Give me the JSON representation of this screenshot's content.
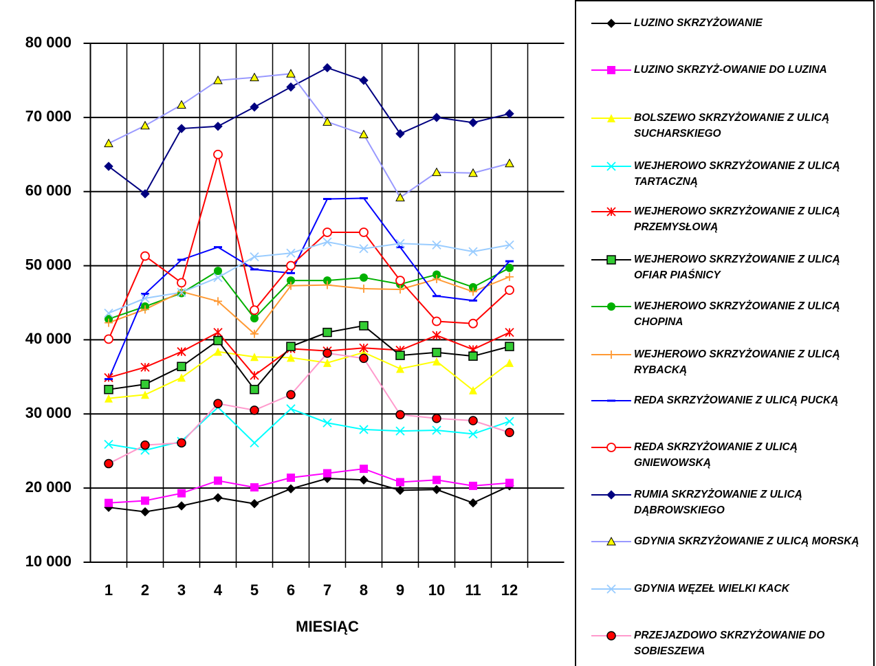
{
  "chart_data": {
    "type": "line",
    "x_label": "MIESIĄC",
    "x": [
      1,
      2,
      3,
      4,
      5,
      6,
      7,
      8,
      9,
      10,
      11,
      12
    ],
    "xlim": [
      0.5,
      13.5
    ],
    "xticks": [
      1,
      2,
      3,
      4,
      5,
      6,
      7,
      8,
      9,
      10,
      11,
      12
    ],
    "ylim": [
      10000,
      80000
    ],
    "yticks": [
      {
        "value": 10000,
        "label": "10 000"
      },
      {
        "value": 20000,
        "label": "20 000"
      },
      {
        "value": 30000,
        "label": "30 000"
      },
      {
        "value": 40000,
        "label": "40 000"
      },
      {
        "value": 50000,
        "label": "50 000"
      },
      {
        "value": 60000,
        "label": "60 000"
      },
      {
        "value": 70000,
        "label": "70 000"
      },
      {
        "value": 80000,
        "label": "80 000"
      }
    ],
    "grid": true,
    "legend": "right",
    "series": [
      {
        "name": "LUZINO SKRZYŻOWANIE",
        "color": "#000000",
        "marker": "diamond",
        "marker_color": "#000000",
        "values": [
          17400,
          16800,
          17600,
          18700,
          17900,
          19900,
          21300,
          21100,
          19700,
          19800,
          18000,
          20300
        ]
      },
      {
        "name": "LUZINO SKRZYŻ-OWANIE DO LUZINA",
        "color": "#ff00ff",
        "marker": "square",
        "marker_color": "#ff00ff",
        "values": [
          18000,
          18300,
          19300,
          21000,
          20100,
          21400,
          22000,
          22600,
          20800,
          21100,
          20300,
          20700
        ]
      },
      {
        "name": "BOLSZEWO SKRZYŻOWANIE Z ULICĄ SUCHARSKIEGO",
        "color": "#ffff00",
        "marker": "triangle",
        "marker_color": "#ffff00",
        "values": [
          32100,
          32600,
          34900,
          38400,
          37700,
          37600,
          36900,
          38300,
          36100,
          37100,
          33200,
          36900
        ]
      },
      {
        "name": "WEJHEROWO SKRZYŻOWANIE Z ULICĄ TARTACZNĄ",
        "color": "#00ffff",
        "marker": "x",
        "marker_color": "#00ffff",
        "values": [
          25900,
          25100,
          26300,
          30900,
          26100,
          30700,
          28800,
          27900,
          27700,
          27800,
          27300,
          29000
        ]
      },
      {
        "name": "WEJHEROWO SKRZYŻOWANIE Z ULICĄ PRZEMYSŁOWĄ",
        "color": "#ff0000",
        "marker": "star",
        "marker_color": "#ff0000",
        "values": [
          34900,
          36300,
          38400,
          41000,
          35200,
          38800,
          38500,
          38900,
          38600,
          40600,
          38700,
          41000
        ]
      },
      {
        "name": "WEJHEROWO SKRZYŻOWANIE Z ULICĄ OFIAR PIAŚNICY",
        "color": "#000000",
        "marker": "square-edged",
        "marker_color": "#33cc33",
        "values": [
          33300,
          34000,
          36400,
          39900,
          33300,
          39100,
          41000,
          41900,
          37900,
          38300,
          37800,
          39100
        ]
      },
      {
        "name": "WEJHEROWO SKRZYŻOWANIE Z ULICĄ CHOPINA",
        "color": "#00b000",
        "marker": "circle",
        "marker_color": "#00b000",
        "values": [
          42800,
          44500,
          46300,
          49300,
          42900,
          48000,
          48000,
          48400,
          47500,
          48800,
          47100,
          49700
        ]
      },
      {
        "name": "WEJHEROWO SKRZYŻOWANIE Z ULICĄ RYBACKĄ",
        "color": "#ff9933",
        "marker": "plus",
        "marker_color": "#ff9933",
        "values": [
          42300,
          44100,
          46500,
          45200,
          40800,
          47300,
          47400,
          46900,
          46800,
          48200,
          46500,
          48500
        ]
      },
      {
        "name": "REDA SKRZYŻOWANIE Z ULICĄ PUCKĄ",
        "color": "#0000ff",
        "marker": "dash",
        "marker_color": "#0000ff",
        "values": [
          34700,
          46200,
          50800,
          52500,
          49500,
          49000,
          59000,
          59100,
          52500,
          45900,
          45300,
          50600
        ]
      },
      {
        "name": "REDA SKRZYŻOWANIE Z ULICĄ GNIEWOWSKĄ",
        "color": "#ff0000",
        "marker": "open-circle",
        "marker_color": "#ff0000",
        "values": [
          40100,
          51300,
          47700,
          65000,
          44000,
          50000,
          54500,
          54500,
          48000,
          42500,
          42200,
          46700
        ]
      },
      {
        "name": "RUMIA SKRZYŻOWANIE Z ULICĄ DĄBROWSKIEGO",
        "color": "#000080",
        "marker": "diamond",
        "marker_color": "#000080",
        "values": [
          63400,
          59700,
          68500,
          68800,
          71400,
          74100,
          76700,
          75000,
          67800,
          70000,
          69300,
          70500
        ]
      },
      {
        "name": "GDYNIA SKRZYŻOWANIE Z ULICĄ MORSKĄ",
        "color": "#9999ff",
        "marker": "triangle-edged",
        "marker_color": "#ffff00",
        "values": [
          66500,
          68900,
          71700,
          75000,
          75400,
          75900,
          69400,
          67700,
          59200,
          62600,
          62500,
          63800
        ]
      },
      {
        "name": "GDYNIA WĘZEŁ WIELKI KACK",
        "color": "#99ccff",
        "marker": "x",
        "marker_color": "#99ccff",
        "values": [
          43600,
          45600,
          46400,
          48400,
          51200,
          51700,
          53200,
          52300,
          53000,
          52800,
          51900,
          52800
        ]
      },
      {
        "name": "PRZEJAZDOWO SKRZYŻOWANIE DO SOBIESZEWA",
        "color": "#ff99cc",
        "marker": "circle-edged",
        "marker_color": "#ff0000",
        "values": [
          23300,
          25800,
          26100,
          31400,
          30500,
          32600,
          38200,
          37500,
          29900,
          29400,
          29100,
          27500
        ]
      }
    ]
  }
}
